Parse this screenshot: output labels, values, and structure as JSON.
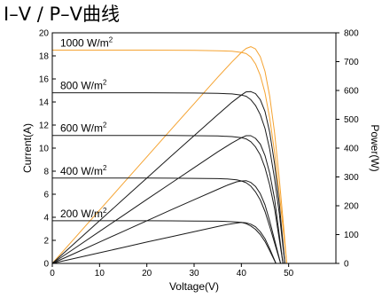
{
  "chart_data": {
    "type": "line",
    "title": "I–V / P–V曲线",
    "xlabel": "Voltage(V)",
    "ylabel": "Current(A)",
    "y2label": "Power(W)",
    "xlim": [
      0,
      60
    ],
    "ylim": [
      0,
      20
    ],
    "y2lim": [
      0,
      800
    ],
    "xticks": [
      0,
      10,
      20,
      30,
      40,
      50
    ],
    "yticks": [
      0,
      2,
      4,
      6,
      8,
      10,
      12,
      14,
      16,
      18,
      20
    ],
    "y2ticks": [
      0,
      100,
      200,
      300,
      400,
      500,
      600,
      700,
      800
    ],
    "grid": false,
    "highlight_color": "#f5a331",
    "default_color": "#1a1a1a",
    "series": [
      {
        "label_base": "1000 W/m",
        "label_sup": "2",
        "color": "#f5a331",
        "iv": {
          "x": [
            0,
            5,
            10,
            15,
            20,
            25,
            30,
            35,
            38,
            40,
            41,
            42,
            43,
            44,
            45,
            46,
            47,
            48,
            49,
            49.6
          ],
          "y": [
            18.5,
            18.5,
            18.5,
            18.5,
            18.5,
            18.49,
            18.48,
            18.45,
            18.4,
            18.3,
            18.2,
            17.9,
            17.3,
            16.3,
            14.8,
            12.6,
            9.7,
            6.2,
            2.4,
            0
          ]
        },
        "pv": {
          "x": [
            0,
            5,
            10,
            15,
            20,
            25,
            30,
            35,
            38,
            40,
            41,
            42,
            43,
            44,
            45,
            46,
            47,
            48,
            49,
            49.6
          ],
          "y": [
            0,
            92.5,
            185,
            277.5,
            370,
            462,
            554,
            646,
            699,
            732,
            746,
            752,
            744,
            717,
            666,
            580,
            456,
            298,
            118,
            0
          ]
        }
      },
      {
        "label_base": "800 W/m",
        "label_sup": "2",
        "color": "#1a1a1a",
        "iv": {
          "x": [
            0,
            5,
            10,
            15,
            20,
            25,
            30,
            35,
            38,
            40,
            41,
            42,
            43,
            44,
            45,
            46,
            47,
            48,
            49.2
          ],
          "y": [
            14.8,
            14.8,
            14.8,
            14.8,
            14.8,
            14.79,
            14.78,
            14.75,
            14.7,
            14.6,
            14.5,
            14.2,
            13.7,
            12.9,
            11.7,
            9.9,
            7.4,
            4.4,
            0
          ]
        },
        "pv": {
          "x": [
            0,
            5,
            10,
            15,
            20,
            25,
            30,
            35,
            38,
            40,
            41,
            42,
            43,
            44,
            45,
            46,
            47,
            48,
            49.2
          ],
          "y": [
            0,
            74,
            148,
            222,
            296,
            370,
            443,
            516,
            559,
            584,
            595,
            596,
            589,
            568,
            527,
            455,
            348,
            211,
            0
          ]
        }
      },
      {
        "label_base": "600 W/m",
        "label_sup": "2",
        "color": "#1a1a1a",
        "iv": {
          "x": [
            0,
            5,
            10,
            15,
            20,
            25,
            30,
            35,
            38,
            40,
            41,
            42,
            43,
            44,
            45,
            46,
            47,
            48.8
          ],
          "y": [
            11.1,
            11.1,
            11.1,
            11.1,
            11.1,
            11.09,
            11.08,
            11.05,
            11.0,
            10.9,
            10.8,
            10.55,
            10.1,
            9.4,
            8.3,
            6.8,
            4.8,
            0
          ]
        },
        "pv": {
          "x": [
            0,
            5,
            10,
            15,
            20,
            25,
            30,
            35,
            38,
            40,
            41,
            42,
            43,
            44,
            45,
            46,
            47,
            48.8
          ],
          "y": [
            0,
            55.5,
            111,
            166.5,
            222,
            277,
            332,
            387,
            418,
            436,
            443,
            443,
            434,
            414,
            374,
            313,
            226,
            0
          ]
        }
      },
      {
        "label_base": "400 W/m",
        "label_sup": "2",
        "color": "#1a1a1a",
        "iv": {
          "x": [
            0,
            5,
            10,
            15,
            20,
            25,
            30,
            35,
            37,
            39,
            40,
            41,
            42,
            43,
            44,
            45,
            46,
            48.3
          ],
          "y": [
            7.4,
            7.4,
            7.4,
            7.4,
            7.4,
            7.39,
            7.38,
            7.35,
            7.32,
            7.25,
            7.15,
            7.0,
            6.7,
            6.2,
            5.5,
            4.5,
            3.2,
            0
          ]
        },
        "pv": {
          "x": [
            0,
            5,
            10,
            15,
            20,
            25,
            30,
            35,
            37,
            39,
            40,
            41,
            42,
            43,
            44,
            45,
            46,
            48.3
          ],
          "y": [
            0,
            37,
            74,
            111,
            148,
            185,
            221,
            257,
            271,
            283,
            286,
            287,
            281,
            267,
            242,
            203,
            147,
            0
          ]
        }
      },
      {
        "label_base": "200 W/m",
        "label_sup": "2",
        "color": "#1a1a1a",
        "iv": {
          "x": [
            0,
            5,
            10,
            15,
            20,
            25,
            30,
            35,
            37,
            39,
            40,
            41,
            42,
            43,
            44,
            45,
            46,
            47.3
          ],
          "y": [
            3.7,
            3.7,
            3.7,
            3.7,
            3.7,
            3.69,
            3.68,
            3.66,
            3.64,
            3.6,
            3.55,
            3.45,
            3.25,
            2.95,
            2.5,
            1.9,
            1.1,
            0
          ]
        },
        "pv": {
          "x": [
            0,
            5,
            10,
            15,
            20,
            25,
            30,
            35,
            37,
            39,
            40,
            41,
            42,
            43,
            44,
            45,
            46,
            47.3
          ],
          "y": [
            0,
            18.5,
            37,
            55.5,
            74,
            92,
            110,
            128,
            135,
            140,
            142,
            141,
            136,
            127,
            110,
            86,
            51,
            0
          ]
        }
      }
    ]
  }
}
